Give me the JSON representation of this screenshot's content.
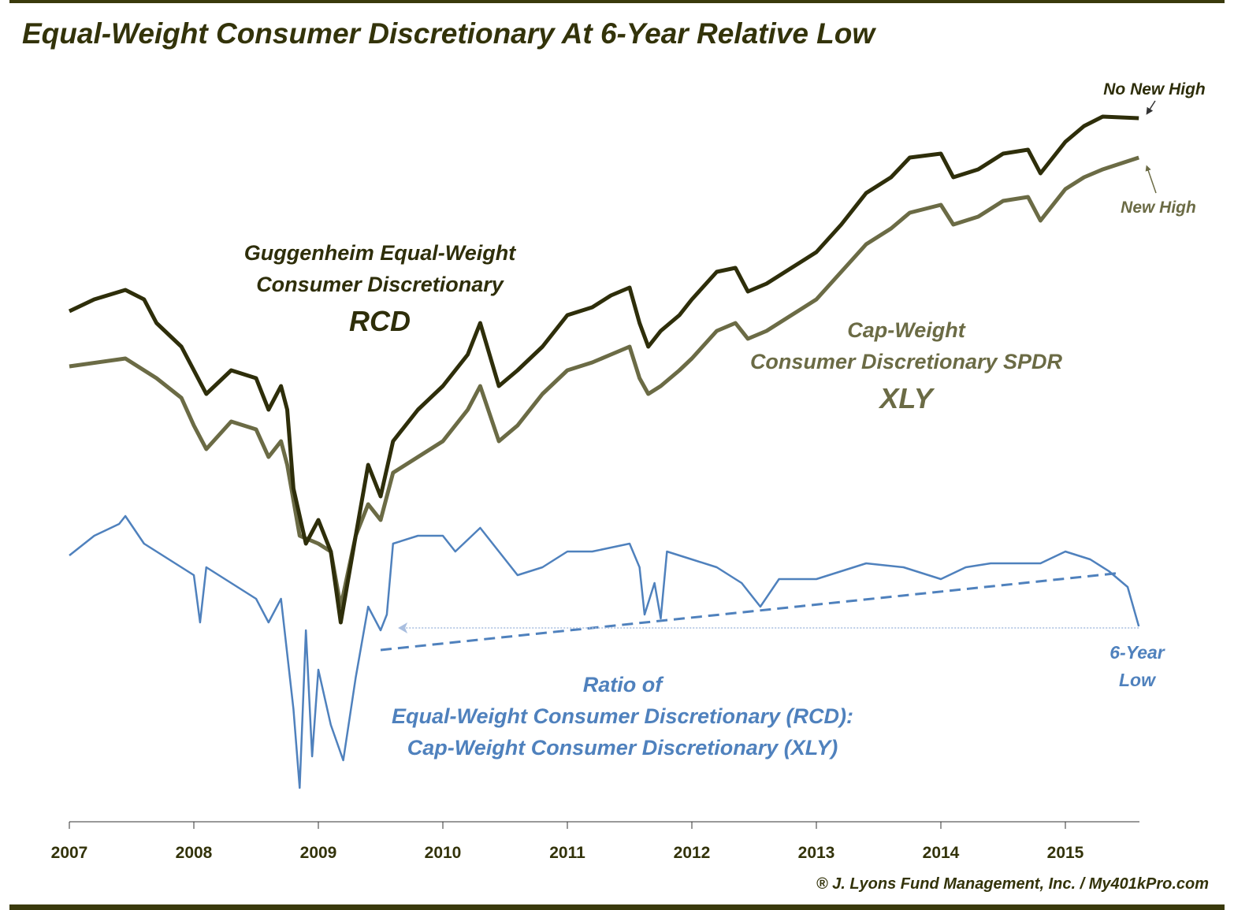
{
  "title": "Equal-Weight Consumer Discretionary At 6-Year Relative Low",
  "footer": "® J. Lyons Fund Management, Inc. / My401kPro.com",
  "colors": {
    "rcd": "#2e2e0a",
    "xly": "#6b6b45",
    "ratio": "#4f81bd",
    "frame": "#3a3a0c"
  },
  "annotations": {
    "rcd": [
      "Guggenheim  Equal-Weight",
      "Consumer  Discretionary",
      "RCD"
    ],
    "xly": [
      "Cap-Weight",
      "Consumer  Discretionary  SPDR",
      "XLY"
    ],
    "ratio": [
      "Ratio of",
      "Equal-Weight  Consumer  Discretionary  (RCD):",
      "Cap-Weight  Consumer  Discretionary  (XLY)"
    ],
    "no_new_high": "No New High",
    "new_high": "New High",
    "six_year_low": [
      "6-Year",
      "Low"
    ]
  },
  "chart_data": {
    "type": "line",
    "title": "Equal-Weight Consumer Discretionary At 6-Year Relative Low",
    "xlabel": "",
    "ylabel": "",
    "xlim": [
      2007,
      2015.59
    ],
    "x_ticks": [
      "2007",
      "2008",
      "2009",
      "2010",
      "2011",
      "2012",
      "2013",
      "2014",
      "2015"
    ],
    "y_axis_shown": false,
    "grid": false,
    "series": [
      {
        "name": "RCD",
        "key": "rcd",
        "x": [
          2007.0,
          2007.2,
          2007.45,
          2007.6,
          2007.7,
          2007.9,
          2008.0,
          2008.1,
          2008.3,
          2008.5,
          2008.6,
          2008.7,
          2008.75,
          2008.8,
          2008.9,
          2009.0,
          2009.1,
          2009.18,
          2009.3,
          2009.4,
          2009.5,
          2009.6,
          2009.8,
          2010.0,
          2010.2,
          2010.3,
          2010.45,
          2010.6,
          2010.8,
          2011.0,
          2011.2,
          2011.35,
          2011.5,
          2011.58,
          2011.65,
          2011.75,
          2011.9,
          2012.0,
          2012.2,
          2012.35,
          2012.45,
          2012.6,
          2012.8,
          2013.0,
          2013.2,
          2013.4,
          2013.6,
          2013.75,
          2014.0,
          2014.1,
          2014.3,
          2014.5,
          2014.7,
          2014.8,
          2015.0,
          2015.15,
          2015.3,
          2015.59
        ],
        "y": [
          64.5,
          66,
          67.2,
          66,
          63,
          60,
          57,
          54,
          57,
          56,
          52,
          55,
          52,
          42,
          35,
          38,
          34,
          25,
          36,
          45,
          41,
          48,
          52,
          55,
          59,
          63,
          55,
          57,
          60,
          64,
          65,
          66.5,
          67.5,
          63,
          60,
          62,
          64,
          66,
          69.5,
          70,
          67,
          68,
          70,
          72,
          75.5,
          79.5,
          81.5,
          84,
          84.5,
          81.5,
          82.5,
          84.5,
          85,
          82,
          86,
          88,
          89.2,
          89
        ]
      },
      {
        "name": "XLY",
        "key": "xly",
        "x": [
          2007.0,
          2007.45,
          2007.7,
          2007.9,
          2008.0,
          2008.1,
          2008.3,
          2008.5,
          2008.6,
          2008.7,
          2008.75,
          2008.85,
          2009.0,
          2009.1,
          2009.18,
          2009.3,
          2009.4,
          2009.5,
          2009.6,
          2009.8,
          2010.0,
          2010.2,
          2010.3,
          2010.45,
          2010.6,
          2010.8,
          2011.0,
          2011.2,
          2011.35,
          2011.5,
          2011.58,
          2011.65,
          2011.75,
          2011.9,
          2012.0,
          2012.2,
          2012.35,
          2012.45,
          2012.6,
          2012.8,
          2013.0,
          2013.2,
          2013.4,
          2013.6,
          2013.75,
          2014.0,
          2014.1,
          2014.3,
          2014.5,
          2014.7,
          2014.8,
          2015.0,
          2015.15,
          2015.3,
          2015.59
        ],
        "y": [
          57.5,
          58.5,
          56,
          53.5,
          50,
          47,
          50.5,
          49.5,
          46,
          48,
          45,
          36,
          35,
          34,
          27,
          36,
          40,
          38,
          44,
          46,
          48,
          52,
          55,
          48,
          50,
          54,
          57,
          58,
          59,
          60,
          56,
          54,
          55,
          57,
          58.5,
          62,
          63,
          61,
          62,
          64,
          66,
          69.5,
          73,
          75,
          77,
          78,
          75.5,
          76.5,
          78.5,
          79,
          76,
          80,
          81.5,
          82.5,
          84
        ]
      },
      {
        "name": "Ratio RCD:XLY",
        "key": "ratio",
        "x": [
          2007.0,
          2007.2,
          2007.4,
          2007.45,
          2007.6,
          2007.8,
          2008.0,
          2008.05,
          2008.1,
          2008.3,
          2008.5,
          2008.6,
          2008.7,
          2008.75,
          2008.8,
          2008.85,
          2008.9,
          2008.95,
          2009.0,
          2009.1,
          2009.2,
          2009.3,
          2009.4,
          2009.5,
          2009.55,
          2009.6,
          2009.8,
          2010.0,
          2010.1,
          2010.3,
          2010.45,
          2010.6,
          2010.8,
          2011.0,
          2011.2,
          2011.5,
          2011.58,
          2011.62,
          2011.7,
          2011.75,
          2011.8,
          2012.0,
          2012.2,
          2012.4,
          2012.55,
          2012.7,
          2013.0,
          2013.2,
          2013.4,
          2013.7,
          2014.0,
          2014.2,
          2014.4,
          2014.6,
          2014.8,
          2015.0,
          2015.2,
          2015.35,
          2015.5,
          2015.59
        ],
        "y": [
          33.5,
          36,
          37.5,
          38.5,
          35,
          33,
          31,
          25,
          32,
          30,
          28,
          25,
          28,
          21,
          14,
          4,
          24,
          8,
          19,
          12,
          7.5,
          18,
          27,
          24,
          26,
          35,
          36,
          36,
          34,
          37,
          34,
          31,
          32,
          34,
          34,
          35,
          32,
          26,
          30,
          25.5,
          34,
          33,
          32,
          30,
          27,
          30.5,
          30.5,
          31.5,
          32.5,
          32,
          30.5,
          32,
          32.5,
          32.5,
          32.5,
          34,
          33,
          31.5,
          29.5,
          24.5
        ]
      }
    ],
    "ratio_trendline": {
      "x": [
        2009.5,
        2015.45
      ],
      "y": [
        21.5,
        31.3
      ],
      "style": "dashed"
    },
    "ratio_low_level": {
      "x": [
        2009.64,
        2015.59
      ],
      "y": [
        24.3,
        24.3
      ],
      "style": "dotted"
    }
  }
}
